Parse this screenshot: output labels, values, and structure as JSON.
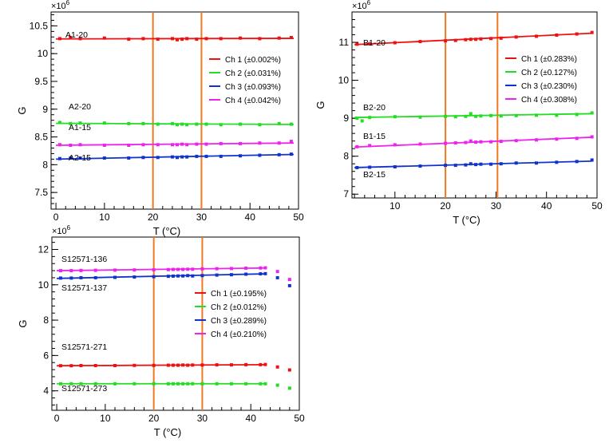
{
  "chart_data": [
    {
      "type": "scatter",
      "xlabel": "T (°C)",
      "ylabel": "G",
      "y_multiplier": "×10^6",
      "xlim": [
        -1,
        50
      ],
      "ylim": [
        7.2,
        10.75
      ],
      "xticks": [
        0,
        10,
        20,
        30,
        40,
        50
      ],
      "yticks": [
        7.5,
        8,
        8.5,
        9,
        9.5,
        10,
        10.5
      ],
      "legend_position": "right",
      "vlines": [
        20,
        30
      ],
      "series": [
        {
          "name": "Ch 1 (±0.002%)",
          "color": "#ee1111",
          "label": "A1-20",
          "x": [
            0.8,
            3,
            5,
            10,
            15,
            18,
            21,
            24,
            25,
            26,
            27,
            29,
            31,
            34,
            38,
            42,
            46,
            48.5
          ],
          "y": [
            10.27,
            10.29,
            10.27,
            10.28,
            10.26,
            10.27,
            10.26,
            10.27,
            10.25,
            10.26,
            10.27,
            10.26,
            10.27,
            10.27,
            10.28,
            10.27,
            10.28,
            10.29
          ],
          "fit": [
            [
              0,
              10.265
            ],
            [
              49,
              10.275
            ]
          ]
        },
        {
          "name": "Ch 2 (±0.031%)",
          "color": "#22dd22",
          "label": "A2-20",
          "x": [
            0.8,
            3,
            5,
            10,
            15,
            18,
            21,
            24,
            25,
            26,
            27,
            29,
            31,
            34,
            38,
            42,
            46,
            48.5
          ],
          "y": [
            8.76,
            8.74,
            8.75,
            8.75,
            8.74,
            8.74,
            8.73,
            8.74,
            8.72,
            8.73,
            8.72,
            8.73,
            8.73,
            8.72,
            8.73,
            8.72,
            8.74,
            8.73
          ],
          "fit": [
            [
              0,
              8.745
            ],
            [
              49,
              8.725
            ]
          ]
        },
        {
          "name": "Ch 3 (±0.093%)",
          "color": "#1133cc",
          "label": "A2-15",
          "x": [
            0.8,
            3,
            5,
            10,
            15,
            18,
            21,
            24,
            25,
            26,
            27,
            29,
            31,
            34,
            38,
            42,
            46,
            48.5
          ],
          "y": [
            8.11,
            8.12,
            8.12,
            8.12,
            8.12,
            8.13,
            8.13,
            8.14,
            8.13,
            8.14,
            8.14,
            8.15,
            8.15,
            8.15,
            8.16,
            8.17,
            8.18,
            8.19
          ],
          "fit": [
            [
              0,
              8.1
            ],
            [
              49,
              8.185
            ]
          ]
        },
        {
          "name": "Ch 4 (±0.042%)",
          "color": "#ee22ee",
          "label": "A1-15",
          "x": [
            0.8,
            3,
            5,
            10,
            15,
            18,
            21,
            24,
            25,
            26,
            27,
            29,
            31,
            34,
            38,
            42,
            46,
            48.5
          ],
          "y": [
            8.36,
            8.35,
            8.36,
            8.35,
            8.35,
            8.36,
            8.36,
            8.36,
            8.36,
            8.37,
            8.36,
            8.37,
            8.37,
            8.38,
            8.38,
            8.39,
            8.39,
            8.42
          ],
          "fit": [
            [
              0,
              8.35
            ],
            [
              49,
              8.39
            ]
          ]
        }
      ]
    },
    {
      "type": "scatter",
      "xlabel": "T (°C)",
      "ylabel": "G",
      "y_multiplier": "×10^6",
      "xlim": [
        1.5,
        50
      ],
      "ylim": [
        6.9,
        11.8
      ],
      "xticks": [
        10,
        20,
        30,
        40,
        50
      ],
      "yticks": [
        7,
        8,
        9,
        10,
        11
      ],
      "legend_position": "right",
      "vlines": [
        20,
        30.3
      ],
      "series": [
        {
          "name": "Ch 1 (±0.283%)",
          "color": "#ee1111",
          "label": "B1-20",
          "x": [
            2.5,
            5,
            10,
            15,
            20,
            22,
            24,
            25,
            26,
            27,
            29,
            31,
            34,
            38,
            42,
            46,
            49
          ],
          "y": [
            10.95,
            10.96,
            10.99,
            11.02,
            11.04,
            11.05,
            11.07,
            11.08,
            11.08,
            11.09,
            11.1,
            11.11,
            11.14,
            11.16,
            11.19,
            11.22,
            11.26
          ],
          "fit": [
            [
              2,
              10.94
            ],
            [
              49,
              11.24
            ]
          ]
        },
        {
          "name": "Ch 2 (±0.127%)",
          "color": "#22dd22",
          "label": "B2-20",
          "x": [
            2.5,
            3.5,
            5,
            10,
            15,
            20,
            22,
            24,
            25,
            26,
            27,
            29,
            31,
            34,
            38,
            42,
            46,
            49
          ],
          "y": [
            9.0,
            8.93,
            9.02,
            9.04,
            9.03,
            9.05,
            9.04,
            9.05,
            9.12,
            9.05,
            9.06,
            9.07,
            9.06,
            9.07,
            9.08,
            9.08,
            9.1,
            9.14
          ],
          "fit": [
            [
              2,
              9.02
            ],
            [
              49,
              9.12
            ]
          ]
        },
        {
          "name": "Ch 3 (±0.230%)",
          "color": "#1133cc",
          "label": "B2-15",
          "x": [
            2.5,
            5,
            10,
            15,
            20,
            22,
            24,
            25,
            26,
            27,
            29,
            31,
            34,
            38,
            42,
            46,
            49
          ],
          "y": [
            7.7,
            7.71,
            7.72,
            7.74,
            7.76,
            7.76,
            7.77,
            7.8,
            7.78,
            7.79,
            7.79,
            7.8,
            7.82,
            7.82,
            7.84,
            7.86,
            7.9
          ],
          "fit": [
            [
              2,
              7.7
            ],
            [
              49,
              7.87
            ]
          ]
        },
        {
          "name": "Ch 4 (±0.308%)",
          "color": "#ee22ee",
          "label": "B1-15",
          "x": [
            2.5,
            5,
            10,
            15,
            20,
            22,
            24,
            25,
            26,
            27,
            29,
            31,
            34,
            38,
            42,
            46,
            49
          ],
          "y": [
            8.25,
            8.28,
            8.3,
            8.32,
            8.34,
            8.35,
            8.36,
            8.4,
            8.37,
            8.38,
            8.38,
            8.39,
            8.41,
            8.43,
            8.45,
            8.47,
            8.51
          ],
          "fit": [
            [
              2,
              8.24
            ],
            [
              49,
              8.5
            ]
          ]
        }
      ]
    },
    {
      "type": "scatter",
      "xlabel": "T (°C)",
      "ylabel": "G",
      "y_multiplier": "×10^6",
      "xlim": [
        -1,
        50
      ],
      "ylim": [
        2.9,
        12.7
      ],
      "xticks": [
        0,
        10,
        20,
        30,
        40,
        50
      ],
      "yticks": [
        4,
        6,
        8,
        10,
        12
      ],
      "legend_position": "right",
      "vlines": [
        20,
        30
      ],
      "series": [
        {
          "name": "Ch 1 (±0.195%)",
          "color": "#ee1111",
          "label": "S12571-271",
          "x": [
            0.8,
            3,
            5,
            8,
            12,
            16,
            20,
            23,
            24,
            25,
            26,
            27,
            28,
            30,
            33,
            36,
            39,
            42,
            43,
            45.5,
            48
          ],
          "y": [
            5.42,
            5.42,
            5.43,
            5.43,
            5.43,
            5.44,
            5.44,
            5.45,
            5.45,
            5.45,
            5.46,
            5.45,
            5.46,
            5.46,
            5.47,
            5.47,
            5.48,
            5.48,
            5.49,
            5.35,
            5.18
          ],
          "fit": [
            [
              0,
              5.42
            ],
            [
              43,
              5.48
            ]
          ]
        },
        {
          "name": "Ch 2 (±0.012%)",
          "color": "#22dd22",
          "label": "S12571-273",
          "x": [
            0.8,
            3,
            5,
            8,
            12,
            16,
            20,
            23,
            24,
            25,
            26,
            27,
            28,
            30,
            33,
            36,
            39,
            42,
            43,
            45.5,
            48
          ],
          "y": [
            4.4,
            4.4,
            4.4,
            4.4,
            4.4,
            4.4,
            4.4,
            4.4,
            4.4,
            4.4,
            4.4,
            4.4,
            4.4,
            4.4,
            4.4,
            4.4,
            4.4,
            4.4,
            4.4,
            4.32,
            4.15
          ],
          "fit": [
            [
              0,
              4.4
            ],
            [
              43,
              4.4
            ]
          ]
        },
        {
          "name": "Ch 3 (±0.289%)",
          "color": "#1133cc",
          "label": "S12571-137",
          "x": [
            0.8,
            3,
            5,
            8,
            12,
            16,
            20,
            23,
            24,
            25,
            26,
            27,
            28,
            30,
            33,
            36,
            39,
            42,
            43,
            45.5,
            48
          ],
          "y": [
            10.38,
            10.38,
            10.4,
            10.4,
            10.42,
            10.44,
            10.46,
            10.48,
            10.49,
            10.5,
            10.5,
            10.52,
            10.5,
            10.52,
            10.55,
            10.57,
            10.6,
            10.62,
            10.63,
            10.4,
            9.95
          ],
          "fit": [
            [
              0,
              10.36
            ],
            [
              43,
              10.62
            ]
          ]
        },
        {
          "name": "Ch 4 (±0.210%)",
          "color": "#ee22ee",
          "label": "S12571-136",
          "x": [
            0.8,
            3,
            5,
            8,
            12,
            16,
            20,
            23,
            24,
            25,
            26,
            27,
            28,
            30,
            33,
            36,
            39,
            42,
            43,
            45.5,
            48
          ],
          "y": [
            10.8,
            10.8,
            10.81,
            10.82,
            10.83,
            10.84,
            10.85,
            10.86,
            10.87,
            10.87,
            10.87,
            10.88,
            10.88,
            10.9,
            10.91,
            10.92,
            10.94,
            10.95,
            10.96,
            10.75,
            10.3
          ],
          "fit": [
            [
              0,
              10.8
            ],
            [
              43,
              10.95
            ]
          ]
        }
      ]
    }
  ]
}
